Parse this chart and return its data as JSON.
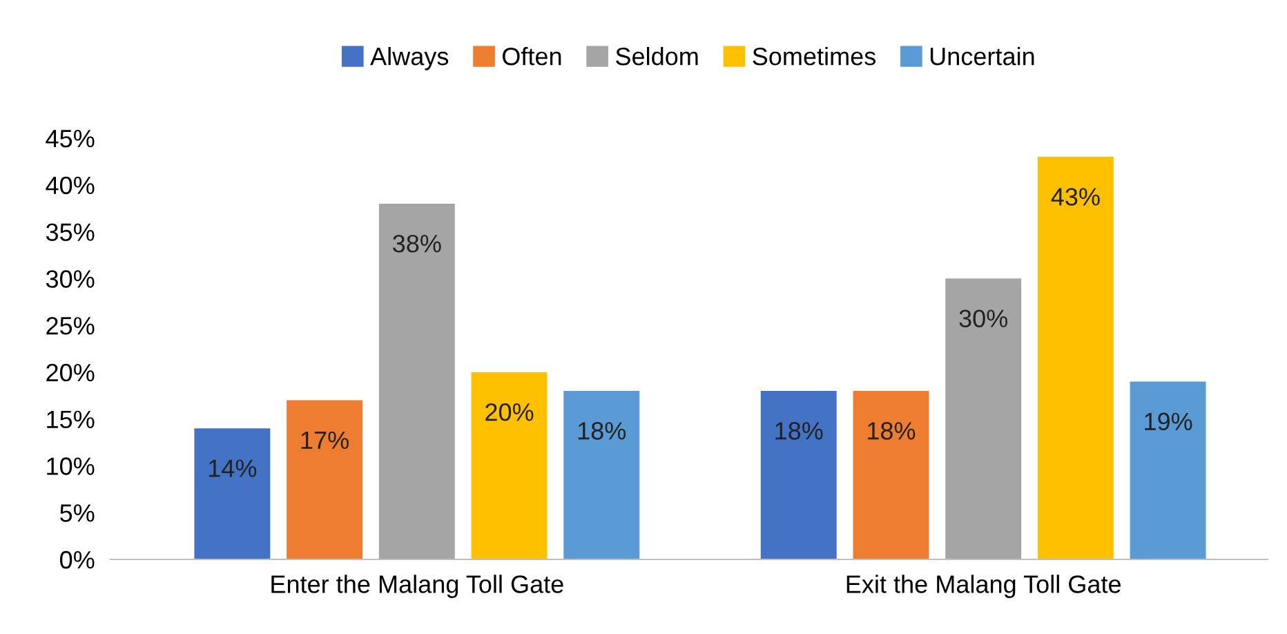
{
  "chart_data": {
    "type": "bar",
    "categories": [
      "Enter the Malang Toll Gate",
      "Exit the Malang Toll Gate"
    ],
    "series": [
      {
        "name": "Always",
        "color": "#4472c4",
        "values": [
          14,
          18
        ],
        "value_labels": [
          "14%",
          "18%"
        ]
      },
      {
        "name": "Often",
        "color": "#ed7d31",
        "values": [
          17,
          18
        ],
        "value_labels": [
          "17%",
          "18%"
        ]
      },
      {
        "name": "Seldom",
        "color": "#a5a5a5",
        "values": [
          38,
          30
        ],
        "value_labels": [
          "38%",
          "30%"
        ]
      },
      {
        "name": "Sometimes",
        "color": "#ffc000",
        "values": [
          20,
          43
        ],
        "value_labels": [
          "20%",
          "43%"
        ]
      },
      {
        "name": "Uncertain",
        "color": "#5b9bd5",
        "values": [
          18,
          19
        ],
        "value_labels": [
          "18%",
          "19%"
        ]
      }
    ],
    "ylim": [
      0,
      45
    ],
    "yticks": [
      {
        "value": 0,
        "label": "0%"
      },
      {
        "value": 5,
        "label": "5%"
      },
      {
        "value": 10,
        "label": "10%"
      },
      {
        "value": 15,
        "label": "15%"
      },
      {
        "value": 20,
        "label": "20%"
      },
      {
        "value": 25,
        "label": "25%"
      },
      {
        "value": 30,
        "label": "30%"
      },
      {
        "value": 35,
        "label": "35%"
      },
      {
        "value": 40,
        "label": "40%"
      },
      {
        "value": 45,
        "label": "45%"
      }
    ],
    "grid": false,
    "legend": "top"
  }
}
